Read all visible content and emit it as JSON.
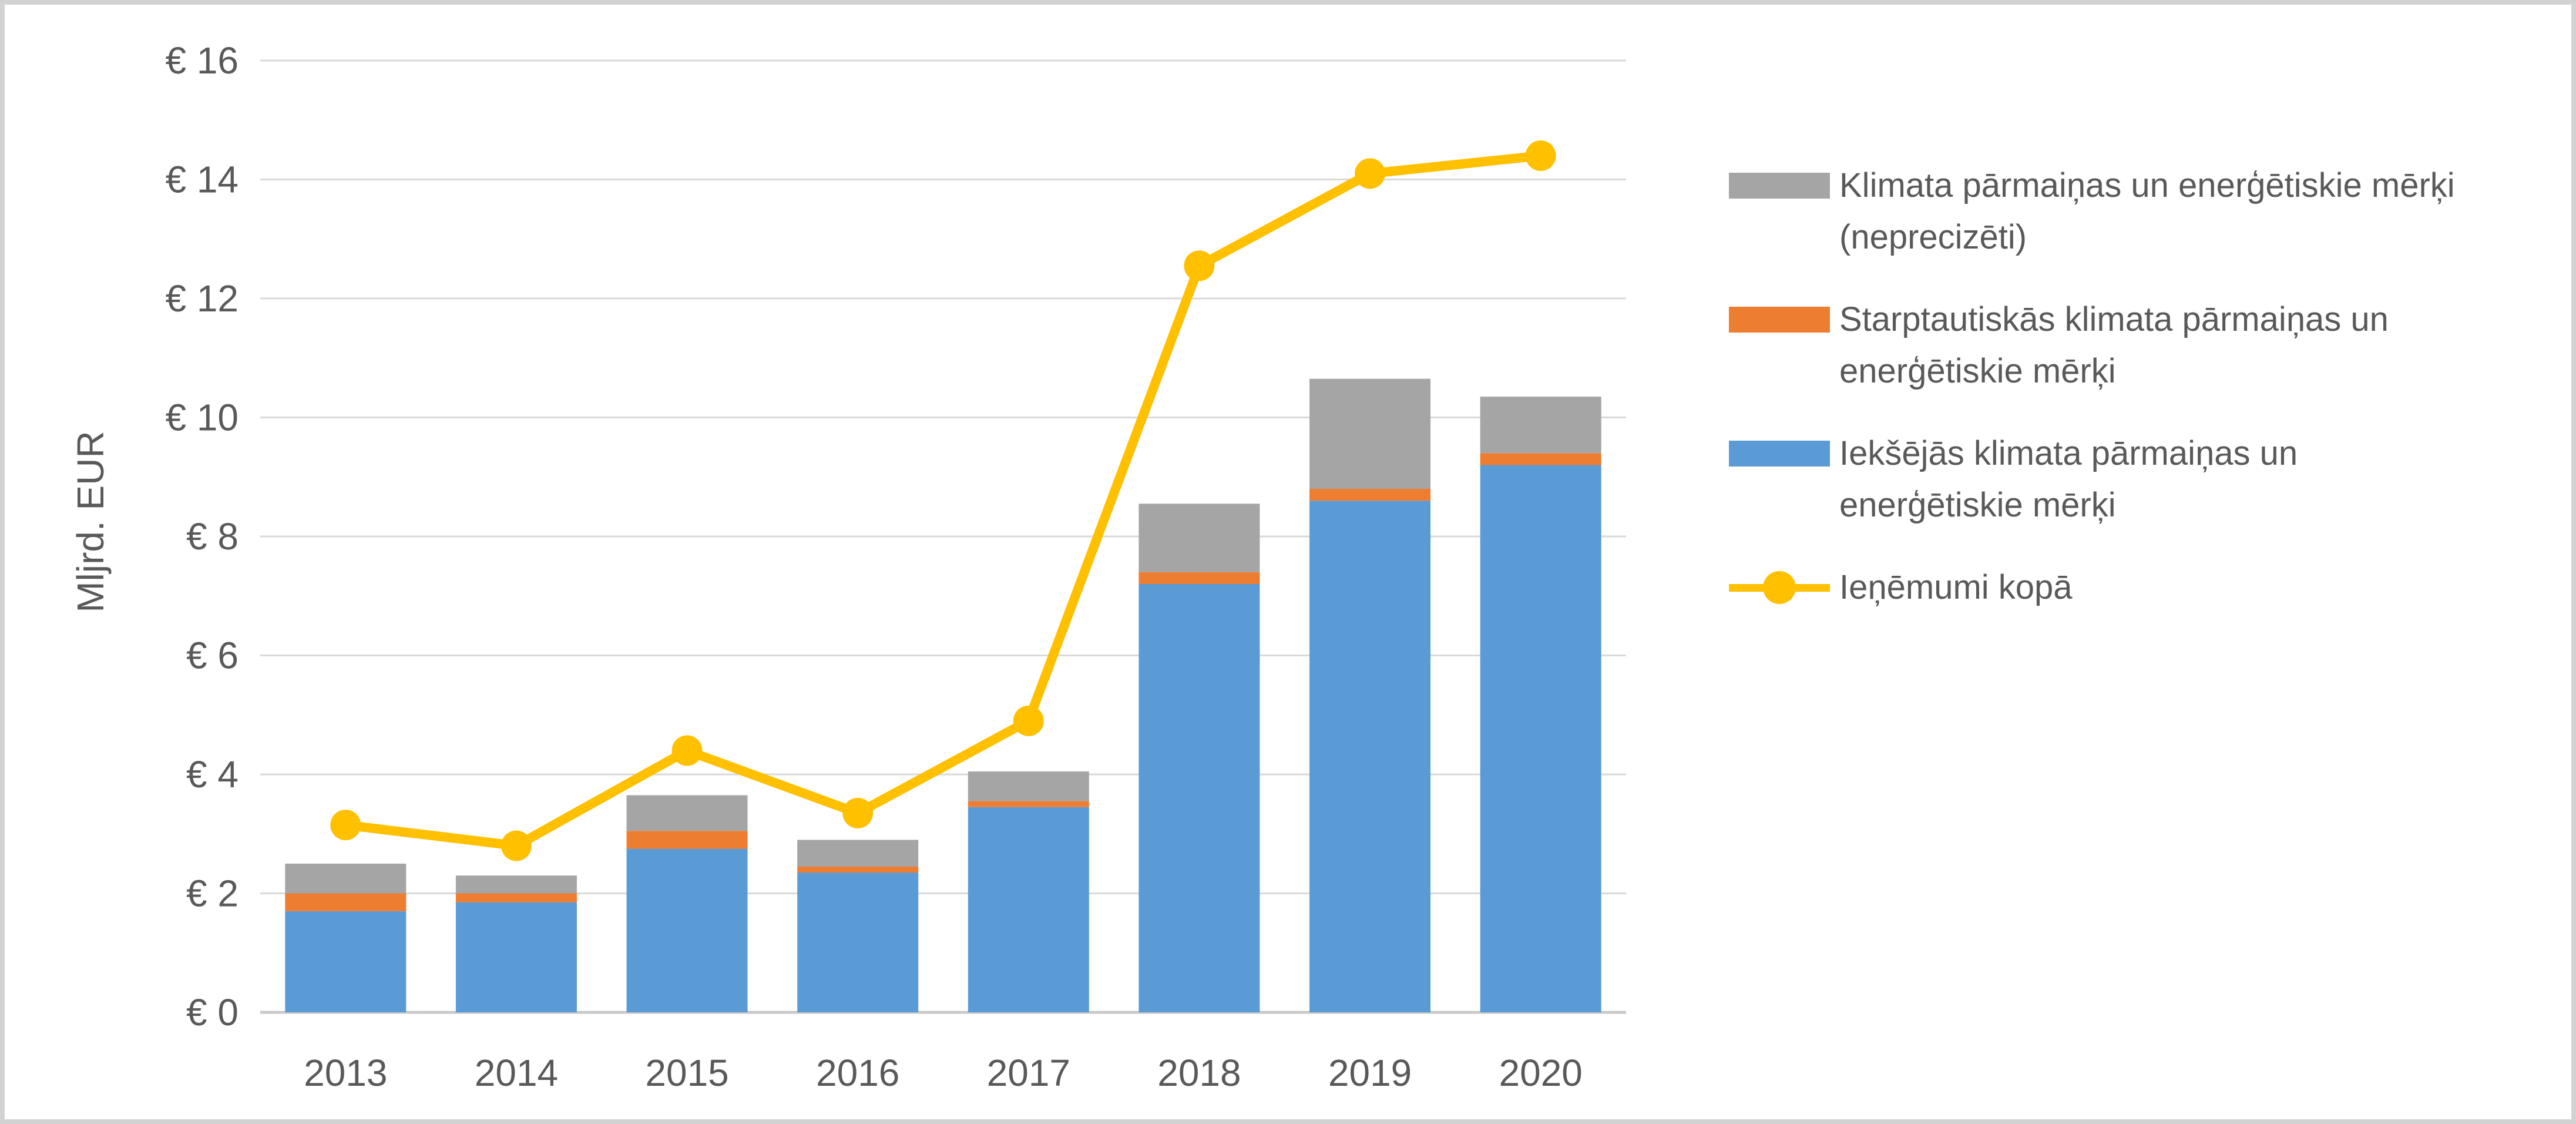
{
  "window": {
    "type": "chart-screenshot",
    "background": "#ffffff",
    "border_color": "#d2d2d2"
  },
  "theme": {
    "text_color": "#595959",
    "gridline_color": "#d9d9d9",
    "axis_line_color": "#c9c9c9",
    "bar_blue": "#5b9bd5",
    "bar_orange": "#ed7d31",
    "bar_gray": "#a5a5a5",
    "line_yellow": "#ffc000"
  },
  "y_axis": {
    "title": "Mljrd. EUR",
    "ticks": [
      {
        "value": 16,
        "label": "€ 16"
      },
      {
        "value": 14,
        "label": "€ 14"
      },
      {
        "value": 12,
        "label": "€ 12"
      },
      {
        "value": 10,
        "label": "€ 10"
      },
      {
        "value": 8,
        "label": "€ 8"
      },
      {
        "value": 6,
        "label": "€ 6"
      },
      {
        "value": 4,
        "label": "€ 4"
      },
      {
        "value": 2,
        "label": "€ 2"
      },
      {
        "value": 0,
        "label": "€ 0"
      }
    ]
  },
  "x_axis": {
    "categories": [
      "2013",
      "2014",
      "2015",
      "2016",
      "2017",
      "2018",
      "2019",
      "2020"
    ]
  },
  "legend": {
    "position": "right",
    "items": [
      {
        "label": "Klimata pārmaiņas un enerģētiskie mērķi (neprecizēti)",
        "color": "#a5a5a5",
        "marker": "swatch"
      },
      {
        "label": "Starptautiskās klimata pārmaiņas un enerģētiskie mērķi",
        "color": "#ed7d31",
        "marker": "swatch"
      },
      {
        "label": "Iekšējās klimata pārmaiņas un enerģētiskie mērķi",
        "color": "#5b9bd5",
        "marker": "swatch"
      },
      {
        "label": "Ieņēmumi kopā",
        "color": "#ffc000",
        "marker": "line"
      }
    ]
  },
  "chart_data": {
    "type": "combo-stacked-bar-line",
    "categories": [
      "2013",
      "2014",
      "2015",
      "2016",
      "2017",
      "2018",
      "2019",
      "2020"
    ],
    "series": [
      {
        "name": "Iekšējās klimata pārmaiņas un enerģētiskie mērķi",
        "key": "ieksejas-merki",
        "type": "bar",
        "color": "#5b9bd5",
        "values": [
          1.7,
          1.85,
          2.75,
          2.35,
          3.45,
          7.2,
          8.6,
          9.2
        ]
      },
      {
        "name": "Starptautiskās klimata pārmaiņas un enerģētiskie mērķi",
        "key": "starptautiskie-merki",
        "type": "bar",
        "color": "#ed7d31",
        "values": [
          0.3,
          0.15,
          0.3,
          0.1,
          0.1,
          0.2,
          0.2,
          0.2
        ]
      },
      {
        "name": "Klimata pārmaiņas un enerģētiskie mērķi (neprecizēti)",
        "key": "neprecizeti-merki",
        "type": "bar",
        "color": "#a5a5a5",
        "values": [
          0.5,
          0.3,
          0.6,
          0.45,
          0.5,
          1.15,
          1.85,
          0.95
        ]
      },
      {
        "name": "Ieņēmumi kopā",
        "key": "ienemumi-kopa",
        "type": "line",
        "color": "#ffc000",
        "values": [
          3.15,
          2.8,
          4.4,
          3.35,
          4.9,
          12.55,
          14.1,
          14.4
        ]
      }
    ],
    "bar_totals": [
      2.5,
      2.3,
      3.65,
      2.9,
      4.05,
      8.55,
      10.65,
      10.35
    ],
    "stack_order_bottom_to_top": [
      "ieksejas-merki",
      "starptautiskie-merki",
      "neprecizeti-merki"
    ],
    "ylabel": "Mljrd. EUR",
    "ylim": [
      0,
      16
    ],
    "ytick_step": 2,
    "grid": true,
    "legend_position": "right"
  }
}
